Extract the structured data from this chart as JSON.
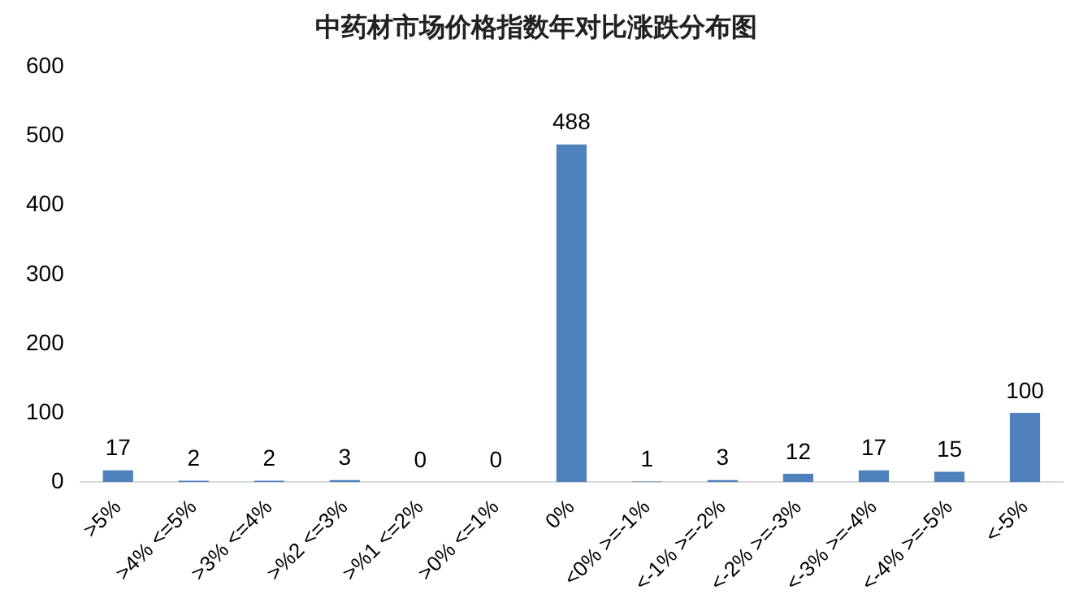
{
  "chart_data": {
    "type": "bar",
    "title": "中药材市场价格指数年对比涨跌分布图",
    "categories": [
      ">5%",
      ">4% <=5%",
      ">3% <=4%",
      ">%2 <=3%",
      ">%1 <=2%",
      ">0% <=1%",
      "0%",
      "<0% >=-1%",
      "<-1% >=-2%",
      "<-2% >=-3%",
      "<-3% >=-4%",
      "<-4% >=-5%",
      "<-5%"
    ],
    "values": [
      17,
      2,
      2,
      3,
      0,
      0,
      488,
      1,
      3,
      12,
      17,
      15,
      100
    ],
    "color": "#4f81bd",
    "ylim": [
      0,
      600
    ],
    "yticks": [
      0,
      100,
      200,
      300,
      400,
      500,
      600
    ],
    "grid": false,
    "data_labels": true
  }
}
